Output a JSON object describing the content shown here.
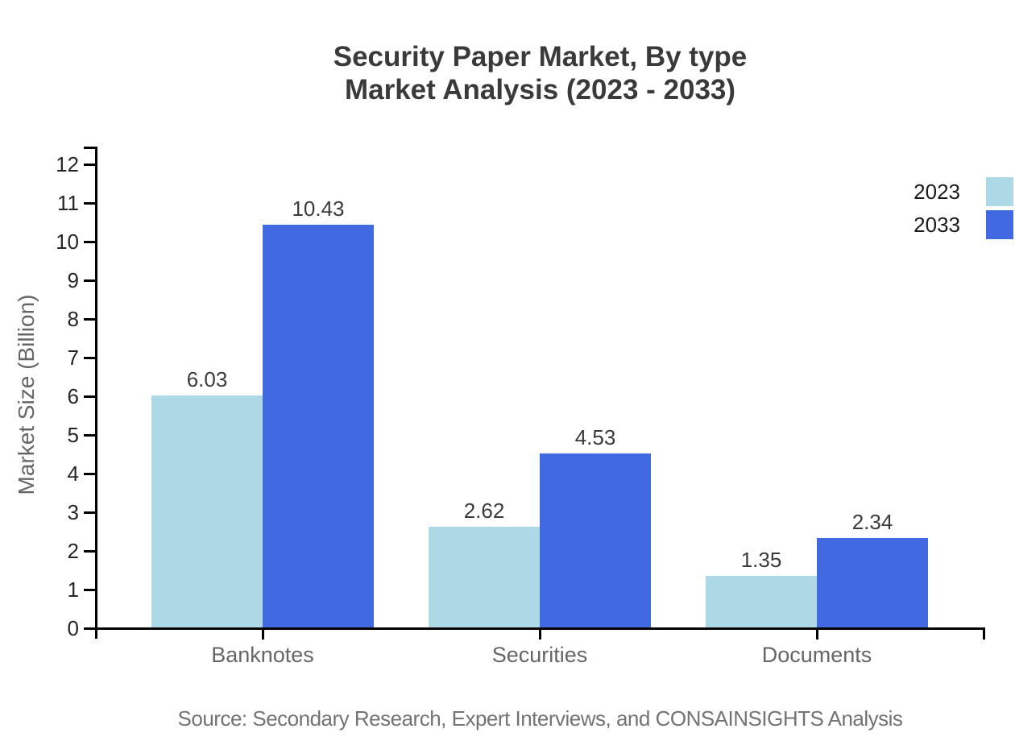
{
  "title": {
    "line1": "Security Paper Market, By type",
    "line2": "Market Analysis (2023 - 2033)"
  },
  "source": "Source: Secondary Research, Expert Interviews, and CONSAINSIGHTS Analysis",
  "chart_data": {
    "type": "bar",
    "title": "Security Paper Market, By type — Market Analysis (2023 - 2033)",
    "categories": [
      "Banknotes",
      "Securities",
      "Documents"
    ],
    "series": [
      {
        "name": "2023",
        "color": "#add8e6",
        "values": [
          6.03,
          2.62,
          1.35
        ]
      },
      {
        "name": "2033",
        "color": "#4169e1",
        "values": [
          10.43,
          4.53,
          2.34
        ]
      }
    ],
    "xlabel": "",
    "ylabel": "Market Size (Billion)",
    "ylim": [
      0,
      12
    ],
    "yticks": [
      0,
      1,
      2,
      3,
      4,
      5,
      6,
      7,
      8,
      9,
      10,
      11,
      12
    ],
    "grid": false,
    "legend_position": "top-right",
    "value_labels": true,
    "axis_color": "#000000",
    "text_colors": {
      "title": "#3a3a3a",
      "tick_labels": "#262626",
      "category_labels": "#666666",
      "value_labels": "#3a3a3a",
      "source": "#737373"
    }
  }
}
